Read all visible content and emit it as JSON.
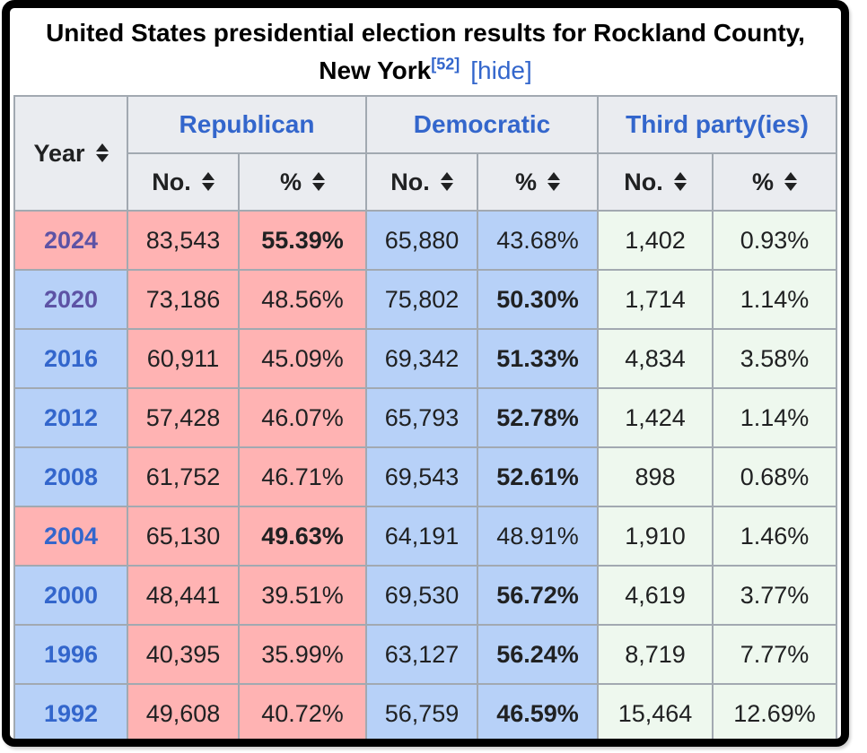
{
  "title": {
    "text": "United States presidential election results for Rockland County, New York",
    "reference": "[52]",
    "hide_link": "[hide]"
  },
  "header": {
    "year": "Year",
    "groups": [
      {
        "label": "Republican"
      },
      {
        "label": "Democratic"
      },
      {
        "label": "Third party(ies)"
      }
    ],
    "subheaders": {
      "no": "No.",
      "pct": "%"
    }
  },
  "rows": [
    {
      "year": "2024",
      "winner": "R",
      "rep_no": "83,543",
      "rep_pct": "55.39%",
      "dem_no": "65,880",
      "dem_pct": "43.68%",
      "third_no": "1,402",
      "third_pct": "0.93%"
    },
    {
      "year": "2020",
      "winner": "D",
      "rep_no": "73,186",
      "rep_pct": "48.56%",
      "dem_no": "75,802",
      "dem_pct": "50.30%",
      "third_no": "1,714",
      "third_pct": "1.14%"
    },
    {
      "year": "2016",
      "winner": "D",
      "rep_no": "60,911",
      "rep_pct": "45.09%",
      "dem_no": "69,342",
      "dem_pct": "51.33%",
      "third_no": "4,834",
      "third_pct": "3.58%"
    },
    {
      "year": "2012",
      "winner": "D",
      "rep_no": "57,428",
      "rep_pct": "46.07%",
      "dem_no": "65,793",
      "dem_pct": "52.78%",
      "third_no": "1,424",
      "third_pct": "1.14%"
    },
    {
      "year": "2008",
      "winner": "D",
      "rep_no": "61,752",
      "rep_pct": "46.71%",
      "dem_no": "69,543",
      "dem_pct": "52.61%",
      "third_no": "898",
      "third_pct": "0.68%"
    },
    {
      "year": "2004",
      "winner": "R",
      "rep_no": "65,130",
      "rep_pct": "49.63%",
      "dem_no": "64,191",
      "dem_pct": "48.91%",
      "third_no": "1,910",
      "third_pct": "1.46%"
    },
    {
      "year": "2000",
      "winner": "D",
      "rep_no": "48,441",
      "rep_pct": "39.51%",
      "dem_no": "69,530",
      "dem_pct": "56.72%",
      "third_no": "4,619",
      "third_pct": "3.77%"
    },
    {
      "year": "1996",
      "winner": "D",
      "rep_no": "40,395",
      "rep_pct": "35.99%",
      "dem_no": "63,127",
      "dem_pct": "56.24%",
      "third_no": "8,719",
      "third_pct": "7.77%"
    },
    {
      "year": "1992",
      "winner": "D",
      "rep_no": "49,608",
      "rep_pct": "40.72%",
      "dem_no": "56,759",
      "dem_pct": "46.59%",
      "third_no": "15,464",
      "third_pct": "12.69%"
    }
  ],
  "icons": {
    "sort": "sort-up-down-triangles"
  },
  "colors": {
    "republican_bg": "#ffb3b3",
    "democratic_bg": "#b7d1f8",
    "third_party_bg": "#eef8ee",
    "header_bg": "#eaecf0",
    "table_border": "#a2a9b1",
    "link_blue": "#3366cc",
    "link_visited_purple": "#5d53a5",
    "frame_border": "#000000"
  },
  "chart_data": {
    "type": "table",
    "title": "United States presidential election results for Rockland County, New York",
    "columns": [
      "Year",
      "Republican No.",
      "Republican %",
      "Democratic No.",
      "Democratic %",
      "Third party(ies) No.",
      "Third party(ies) %"
    ],
    "rows": [
      [
        2024,
        83543,
        55.39,
        65880,
        43.68,
        1402,
        0.93
      ],
      [
        2020,
        73186,
        48.56,
        75802,
        50.3,
        1714,
        1.14
      ],
      [
        2016,
        60911,
        45.09,
        69342,
        51.33,
        4834,
        3.58
      ],
      [
        2012,
        57428,
        46.07,
        65793,
        52.78,
        1424,
        1.14
      ],
      [
        2008,
        61752,
        46.71,
        69543,
        52.61,
        898,
        0.68
      ],
      [
        2004,
        65130,
        49.63,
        64191,
        48.91,
        1910,
        1.46
      ],
      [
        2000,
        48441,
        39.51,
        69530,
        56.72,
        4619,
        3.77
      ],
      [
        1996,
        40395,
        35.99,
        63127,
        56.24,
        8719,
        7.77
      ],
      [
        1992,
        49608,
        40.72,
        56759,
        46.59,
        15464,
        12.69
      ]
    ]
  }
}
